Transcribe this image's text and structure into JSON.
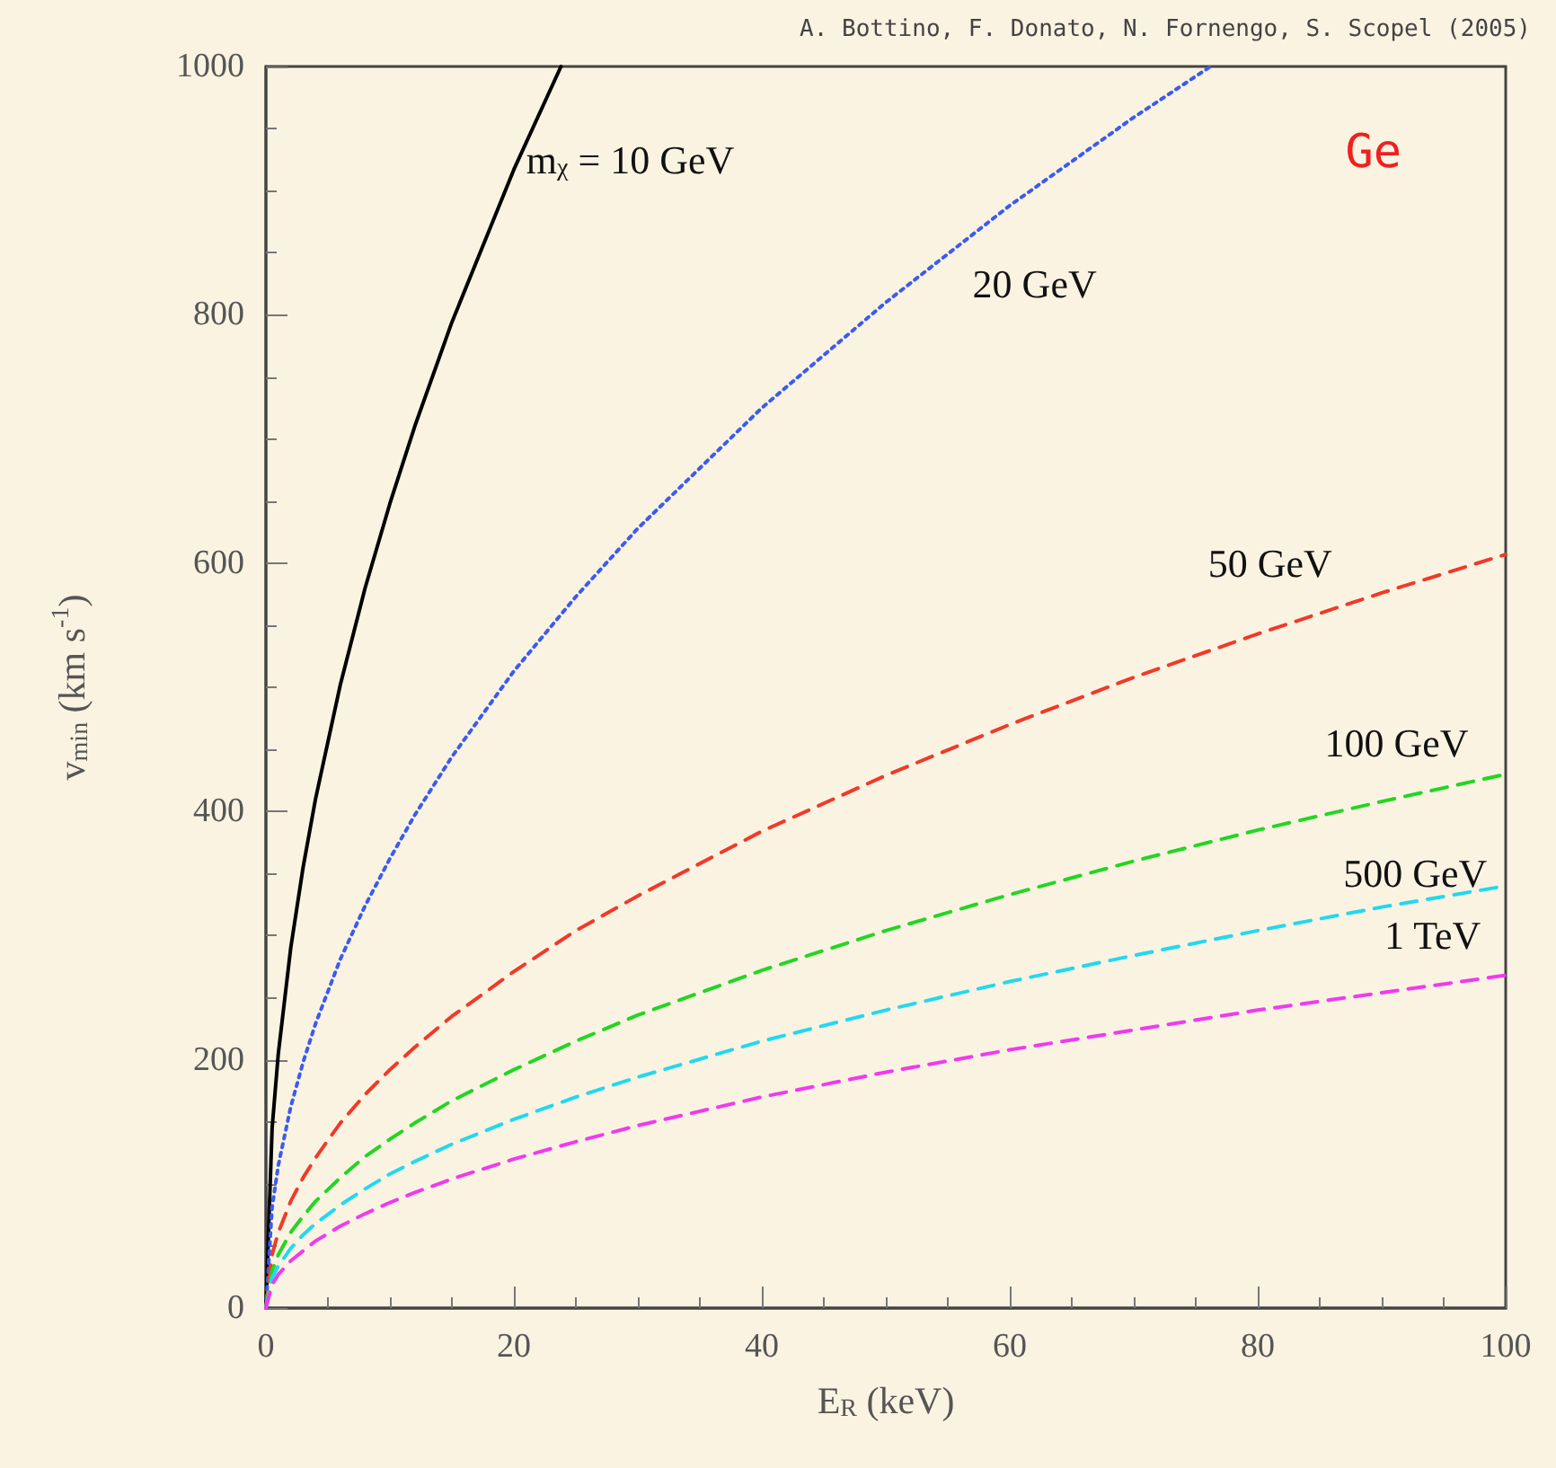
{
  "chart_data": {
    "type": "line",
    "xlabel": "E$_{R}$ (keV)",
    "ylabel": "v$_{min}$ (km s$^{-1}$)",
    "annotations": [
      "A. Bottino, F. Donato, N. Fornengo, S. Scopel (2005)",
      "Ge"
    ],
    "xlim": [
      0,
      100
    ],
    "xticks": [
      0,
      20,
      40,
      60,
      80,
      100
    ],
    "ylim": [
      0,
      1000
    ],
    "yticks": [
      0,
      200,
      400,
      600,
      800,
      1000
    ],
    "grid": false,
    "legend": false,
    "marker": "none",
    "series": [
      {
        "name": "m$_{χ}$ = 10 GeV",
        "color": "#000000",
        "line_style": "solid",
        "x": [
          0,
          0.5,
          1,
          2,
          3,
          4,
          6,
          8,
          10,
          12,
          15,
          20,
          23.8
        ],
        "values": [
          0,
          145,
          205,
          290,
          355,
          410,
          502,
          580,
          648,
          710,
          794,
          917,
          1000
        ]
      },
      {
        "name": "20 GeV",
        "color": "#3b5bf0",
        "line_style": "dotted",
        "x": [
          0,
          0.5,
          1,
          2,
          3,
          4,
          6,
          8,
          10,
          12,
          15,
          20,
          25,
          30,
          40,
          50,
          60,
          70,
          76.2
        ],
        "values": [
          0,
          81,
          115,
          162,
          198,
          229,
          281,
          324,
          362,
          397,
          444,
          513,
          573,
          628,
          725,
          810,
          888,
          959,
          1000
        ]
      },
      {
        "name": "50 GeV",
        "color": "#f03a2a",
        "line_style": "dashed",
        "x": [
          0,
          0.5,
          1,
          2,
          3,
          4,
          6,
          8,
          10,
          12,
          15,
          20,
          25,
          30,
          40,
          50,
          60,
          70,
          80,
          90,
          100
        ],
        "values": [
          0,
          43,
          61,
          86,
          105,
          121,
          149,
          172,
          192,
          210,
          235,
          271,
          304,
          332,
          384,
          429,
          470,
          508,
          543,
          576,
          607
        ]
      },
      {
        "name": "100 GeV",
        "color": "#22d622",
        "line_style": "dashed",
        "x": [
          0,
          0.5,
          1,
          2,
          3,
          4,
          6,
          8,
          10,
          12,
          15,
          20,
          25,
          30,
          40,
          50,
          60,
          70,
          80,
          90,
          100
        ],
        "values": [
          0,
          30,
          43,
          61,
          74,
          86,
          105,
          122,
          136,
          149,
          167,
          192,
          215,
          236,
          272,
          304,
          333,
          360,
          385,
          408,
          430
        ]
      },
      {
        "name": "500 GeV",
        "color": "#22d8f0",
        "line_style": "dashed",
        "x": [
          0,
          0.5,
          1,
          2,
          3,
          4,
          6,
          8,
          10,
          12,
          15,
          20,
          25,
          30,
          40,
          50,
          60,
          70,
          80,
          90,
          100
        ],
        "values": [
          0,
          24,
          34,
          48,
          59,
          68,
          83,
          96,
          108,
          118,
          132,
          152,
          170,
          186,
          215,
          240,
          263,
          284,
          304,
          323,
          340
        ]
      },
      {
        "name": "1 TeV",
        "color": "#f03af0",
        "line_style": "dashed",
        "x": [
          0,
          0.5,
          1,
          2,
          3,
          4,
          6,
          8,
          10,
          12,
          15,
          20,
          25,
          30,
          40,
          50,
          60,
          70,
          80,
          90,
          100
        ],
        "values": [
          0,
          19,
          27,
          38,
          46,
          54,
          66,
          76,
          85,
          93,
          104,
          120,
          134,
          147,
          170,
          190,
          208,
          224,
          240,
          254,
          268
        ]
      }
    ]
  }
}
